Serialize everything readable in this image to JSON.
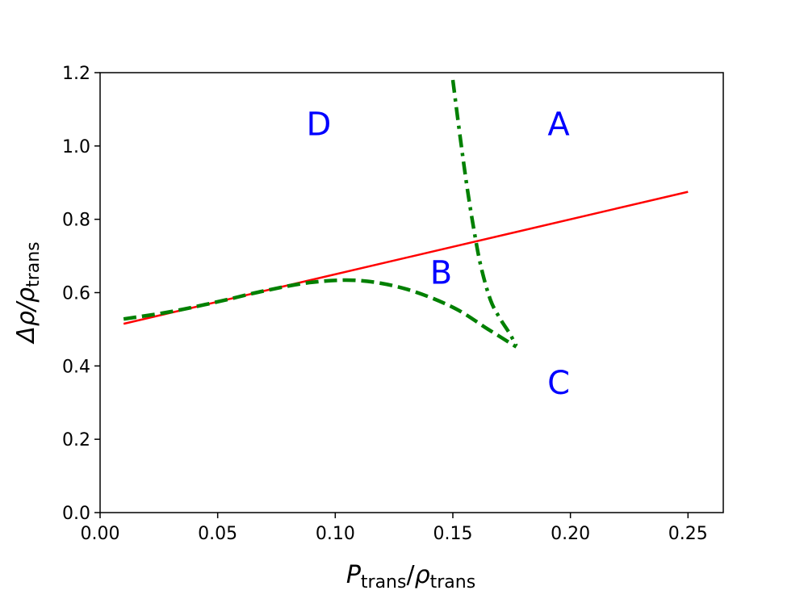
{
  "chart_data": {
    "type": "line",
    "xlabel": {
      "base": "P",
      "sub": "trans",
      "sep": "/",
      "base2": "ρ",
      "sub2": "trans"
    },
    "ylabel": {
      "base": "Δρ/ρ",
      "sub": "trans"
    },
    "xlim": [
      0.0,
      0.265
    ],
    "ylim": [
      0.0,
      1.2
    ],
    "xticks": [
      0.0,
      0.05,
      0.1,
      0.15,
      0.2,
      0.25
    ],
    "xtick_labels": [
      "0.00",
      "0.05",
      "0.10",
      "0.15",
      "0.20",
      "0.25"
    ],
    "yticks": [
      0.0,
      0.2,
      0.4,
      0.6,
      0.8,
      1.0,
      1.2
    ],
    "ytick_labels": [
      "0.0",
      "0.2",
      "0.4",
      "0.6",
      "0.8",
      "1.0",
      "1.2"
    ],
    "grid": false,
    "series": [
      {
        "style": "solid",
        "color": "#ff0000",
        "x": [
          0.01,
          0.25
        ],
        "y": [
          0.515,
          0.875
        ]
      },
      {
        "style": "dashed",
        "color": "#008000",
        "x": [
          0.01,
          0.03,
          0.05,
          0.07,
          0.09,
          0.11,
          0.13,
          0.15,
          0.165,
          0.177
        ],
        "y": [
          0.528,
          0.548,
          0.575,
          0.605,
          0.628,
          0.633,
          0.61,
          0.56,
          0.5,
          0.452
        ]
      },
      {
        "style": "dashdot",
        "color": "#008000",
        "x": [
          0.15,
          0.153,
          0.156,
          0.159,
          0.162,
          0.166,
          0.17,
          0.174,
          0.177
        ],
        "y": [
          1.18,
          1.03,
          0.89,
          0.77,
          0.67,
          0.58,
          0.53,
          0.49,
          0.455
        ]
      }
    ],
    "annotations": [
      {
        "text": "D",
        "x": 0.093,
        "y": 1.06
      },
      {
        "text": "A",
        "x": 0.195,
        "y": 1.06
      },
      {
        "text": "B",
        "x": 0.145,
        "y": 0.655
      },
      {
        "text": "C",
        "x": 0.195,
        "y": 0.355
      }
    ]
  }
}
